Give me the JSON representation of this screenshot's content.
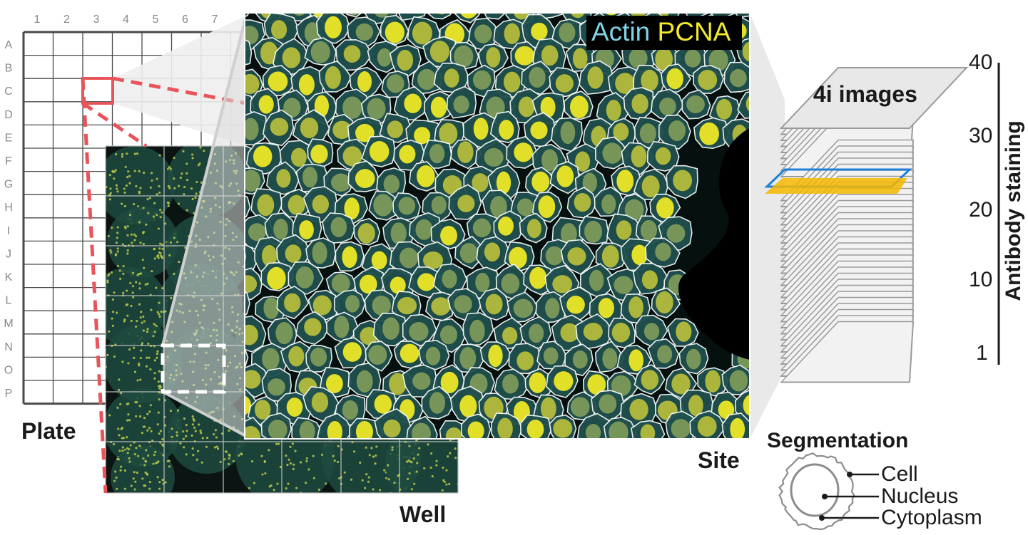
{
  "plate": {
    "label": "Plate",
    "columns": [
      "1",
      "2",
      "3",
      "4",
      "5",
      "6",
      "7"
    ],
    "rows": [
      "A",
      "B",
      "C",
      "D",
      "E",
      "F",
      "G",
      "H",
      "I",
      "J",
      "K",
      "L",
      "M",
      "N",
      "O",
      "P"
    ],
    "highlight_color": "#e8545a"
  },
  "well": {
    "label": "Well"
  },
  "site": {
    "label": "Site",
    "legend_actin": "Actin",
    "legend_pcna": "PCNA",
    "actin_color": "#7fd3e6",
    "pcna_color": "#f2ea2a"
  },
  "stack": {
    "title": "4i images",
    "axis_label": "Antibody staining",
    "ticks": [
      "40",
      "30",
      "20",
      "10",
      "1"
    ],
    "highlight_colors": [
      "#1e7fd6",
      "#f5b800"
    ]
  },
  "segmentation": {
    "title": "Segmentation",
    "labels": [
      "Cell",
      "Nucleus",
      "Cytoplasm"
    ]
  }
}
